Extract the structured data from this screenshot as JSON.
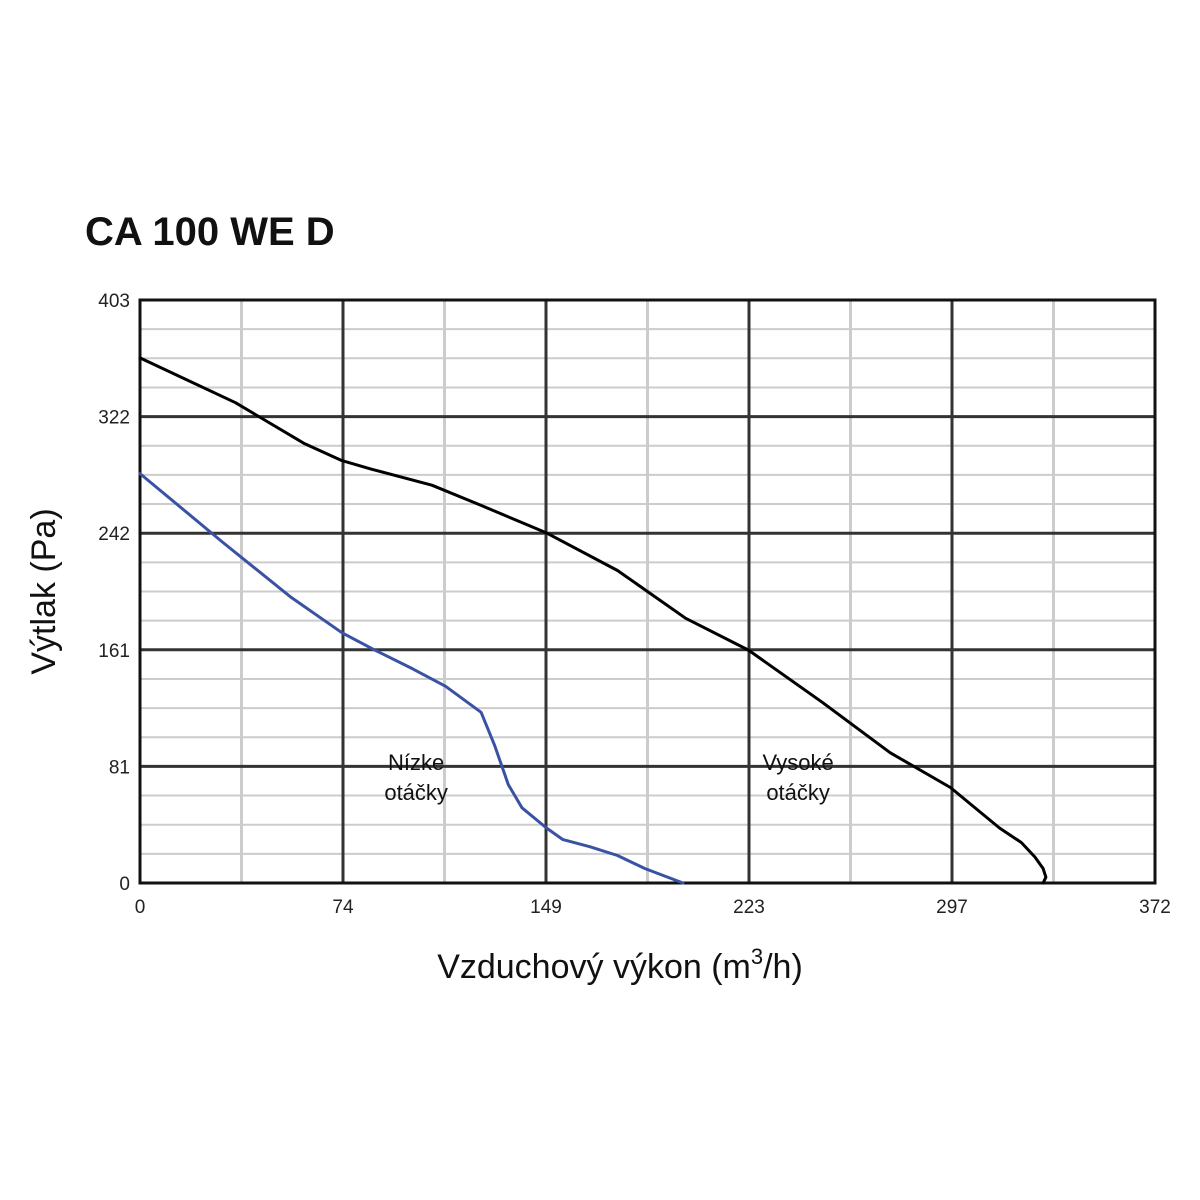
{
  "chart_data": {
    "type": "line",
    "title": "CA 100 WE D",
    "xlabel": "Vzduchový výkon (m",
    "xlabel_sup": "3",
    "xlabel_tail": "/h)",
    "ylabel": "Výtlak (Pa)",
    "xlim": [
      0,
      372
    ],
    "ylim": [
      0,
      403
    ],
    "x_ticks": [
      "0",
      "74",
      "149",
      "223",
      "297",
      "372"
    ],
    "y_ticks": [
      "0",
      "81",
      "161",
      "242",
      "322",
      "403"
    ],
    "grid": true,
    "series": [
      {
        "name": "Nízke otáčky",
        "color": "#3a52a3",
        "x": [
          0,
          30,
          55,
          74,
          85,
          100,
          112,
          125,
          130,
          135,
          140,
          149,
          155,
          165,
          175,
          185,
          199
        ],
        "y": [
          283,
          236,
          198,
          173,
          162,
          148,
          136,
          118,
          95,
          68,
          52,
          38,
          30,
          25,
          19,
          10,
          0
        ]
      },
      {
        "name": "Vysoké otáčky",
        "color": "#000000",
        "x": [
          0,
          35,
          60,
          74,
          85,
          107,
          125,
          149,
          175,
          200,
          223,
          250,
          275,
          297,
          315,
          323,
          328,
          331,
          332,
          331
        ],
        "y": [
          363,
          332,
          304,
          292,
          286,
          275,
          261,
          242,
          216,
          183,
          161,
          125,
          90,
          66,
          38,
          28,
          18,
          10,
          4,
          0
        ]
      }
    ],
    "annotations": [
      {
        "lines": [
          "Nízke",
          "otáčky"
        ],
        "x": 110,
        "y": 78
      },
      {
        "lines": [
          "Vysoké",
          "otáčky"
        ],
        "x": 250,
        "y": 78
      }
    ]
  }
}
